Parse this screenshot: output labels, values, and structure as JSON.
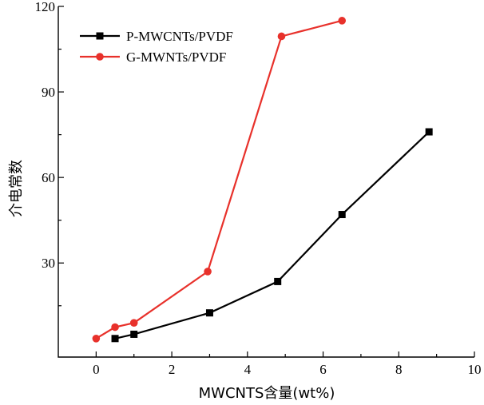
{
  "chart_data": {
    "type": "line",
    "xlabel": "MWCNTS含量(wt%)",
    "ylabel": "介电常数",
    "xlim": [
      -1,
      10
    ],
    "ylim": [
      -3,
      120
    ],
    "xticks": [
      0,
      2,
      4,
      6,
      8,
      10
    ],
    "yticks": [
      30,
      60,
      90,
      120
    ],
    "xtick_labels": [
      "0",
      "2",
      "4",
      "6",
      "8",
      "10"
    ],
    "ytick_labels": [
      "30",
      "60",
      "90",
      "120"
    ],
    "legend_position": "top-left",
    "grid": false,
    "series": [
      {
        "name": "P-MWCNTs/PVDF",
        "color": "#000000",
        "marker": "square",
        "x": [
          0.5,
          1.0,
          3.0,
          4.8,
          6.5,
          8.8
        ],
        "y": [
          3.5,
          5.0,
          12.5,
          23.5,
          47.0,
          76.0
        ]
      },
      {
        "name": "G-MWNTs/PVDF",
        "color": "#e8312b",
        "marker": "circle",
        "x": [
          0.0,
          0.5,
          1.0,
          2.95,
          4.9,
          6.5
        ],
        "y": [
          3.5,
          7.5,
          9.0,
          27.0,
          109.5,
          115.0
        ]
      }
    ]
  }
}
